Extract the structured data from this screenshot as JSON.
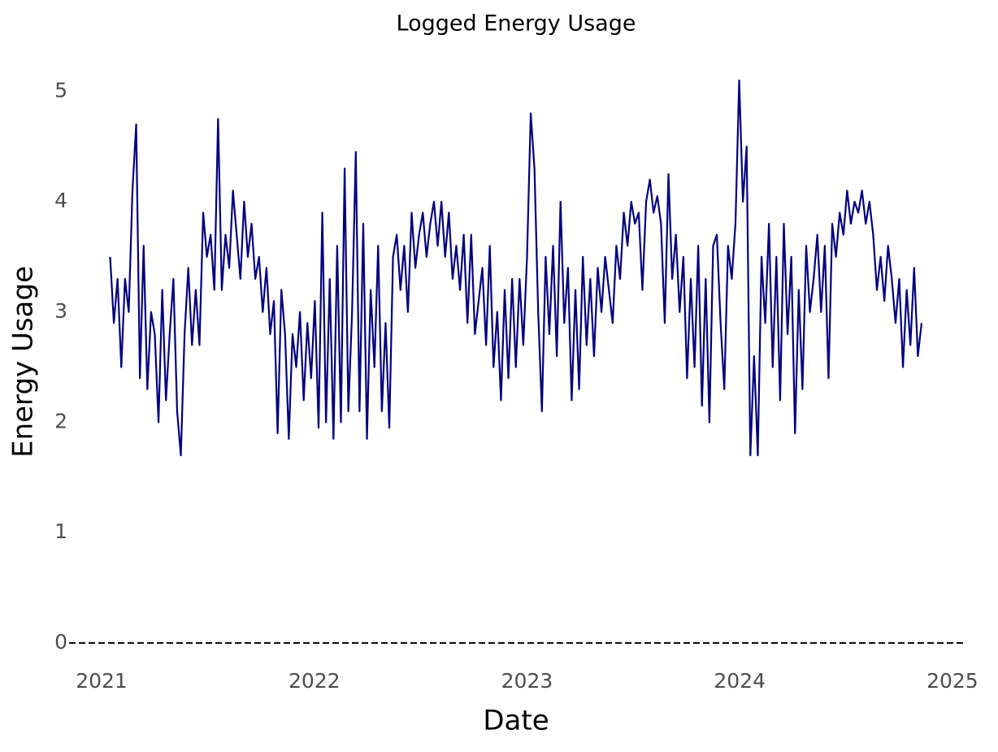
{
  "chart_data": {
    "type": "line",
    "title": "Logged Energy Usage",
    "x_label": "Date",
    "y_label": "Energy Usage",
    "xlim": [
      2020.847,
      2025.05
    ],
    "xticks": [
      2021,
      2022,
      2023,
      2024,
      2025
    ],
    "ylim": [
      -0.06,
      5.15
    ],
    "yticks": [
      0,
      1,
      2,
      3,
      4,
      5
    ],
    "grid": false,
    "hline": 0,
    "series": [
      {
        "name": "Energy Usage",
        "color": "#00007f",
        "x": [
          2021.04,
          2021.0575,
          2021.075,
          2021.0925,
          2021.11,
          2021.1275,
          2021.145,
          2021.1625,
          2021.18,
          2021.1975,
          2021.215,
          2021.2325,
          2021.25,
          2021.2675,
          2021.285,
          2021.3025,
          2021.32,
          2021.3375,
          2021.355,
          2021.3725,
          2021.39,
          2021.4075,
          2021.425,
          2021.4425,
          2021.46,
          2021.4775,
          2021.495,
          2021.5125,
          2021.53,
          2021.5475,
          2021.565,
          2021.5825,
          2021.6,
          2021.6175,
          2021.635,
          2021.6525,
          2021.67,
          2021.6875,
          2021.705,
          2021.7225,
          2021.74,
          2021.7575,
          2021.775,
          2021.7925,
          2021.81,
          2021.8275,
          2021.845,
          2021.8625,
          2021.88,
          2021.8975,
          2021.915,
          2021.9325,
          2021.95,
          2021.9675,
          2021.985,
          2022.0025,
          2022.02,
          2022.0375,
          2022.055,
          2022.0725,
          2022.09,
          2022.1075,
          2022.125,
          2022.1425,
          2022.16,
          2022.1775,
          2022.195,
          2022.2125,
          2022.23,
          2022.2475,
          2022.265,
          2022.2825,
          2022.3,
          2022.3175,
          2022.335,
          2022.3525,
          2022.37,
          2022.3875,
          2022.405,
          2022.4225,
          2022.44,
          2022.4575,
          2022.475,
          2022.4925,
          2022.51,
          2022.5275,
          2022.545,
          2022.5625,
          2022.58,
          2022.5975,
          2022.615,
          2022.6325,
          2022.65,
          2022.6675,
          2022.685,
          2022.7025,
          2022.72,
          2022.7375,
          2022.755,
          2022.7725,
          2022.79,
          2022.8075,
          2022.825,
          2022.8425,
          2022.86,
          2022.8775,
          2022.895,
          2022.9125,
          2022.93,
          2022.9475,
          2022.965,
          2022.9825,
          2023.0,
          2023.0175,
          2023.035,
          2023.0525,
          2023.07,
          2023.0875,
          2023.105,
          2023.1225,
          2023.14,
          2023.1575,
          2023.175,
          2023.1925,
          2023.21,
          2023.2275,
          2023.245,
          2023.2625,
          2023.28,
          2023.2975,
          2023.315,
          2023.3325,
          2023.35,
          2023.3675,
          2023.385,
          2023.4025,
          2023.42,
          2023.4375,
          2023.455,
          2023.4725,
          2023.49,
          2023.5075,
          2023.525,
          2023.5425,
          2023.56,
          2023.5775,
          2023.595,
          2023.6125,
          2023.63,
          2023.6475,
          2023.665,
          2023.6825,
          2023.7,
          2023.7175,
          2023.735,
          2023.7525,
          2023.77,
          2023.7875,
          2023.805,
          2023.8225,
          2023.84,
          2023.8575,
          2023.875,
          2023.8925,
          2023.91,
          2023.9275,
          2023.945,
          2023.9625,
          2023.98,
          2023.9975,
          2024.015,
          2024.0325,
          2024.05,
          2024.0675,
          2024.085,
          2024.1025,
          2024.12,
          2024.1375,
          2024.155,
          2024.1725,
          2024.19,
          2024.2075,
          2024.225,
          2024.2425,
          2024.26,
          2024.2775,
          2024.295,
          2024.3125,
          2024.33,
          2024.3475,
          2024.365,
          2024.3825,
          2024.4,
          2024.4175,
          2024.435,
          2024.4525,
          2024.47,
          2024.4875,
          2024.505,
          2024.5225,
          2024.54,
          2024.5575,
          2024.575,
          2024.5925,
          2024.61,
          2024.6275,
          2024.645,
          2024.6625,
          2024.68,
          2024.6975,
          2024.715,
          2024.7325,
          2024.75,
          2024.7675,
          2024.785,
          2024.8025,
          2024.82,
          2024.8375,
          2024.855
        ],
        "values": [
          3.5,
          2.9,
          3.3,
          2.5,
          3.3,
          3.0,
          4.1,
          4.7,
          2.4,
          3.6,
          2.3,
          3.0,
          2.8,
          2.0,
          3.2,
          2.2,
          2.8,
          3.3,
          2.1,
          1.7,
          2.8,
          3.4,
          2.7,
          3.2,
          2.7,
          3.9,
          3.5,
          3.7,
          3.2,
          4.75,
          3.2,
          3.7,
          3.4,
          4.1,
          3.7,
          3.3,
          4.0,
          3.5,
          3.8,
          3.3,
          3.5,
          3.0,
          3.4,
          2.8,
          3.1,
          1.9,
          3.2,
          2.8,
          1.85,
          2.8,
          2.5,
          3.0,
          2.2,
          2.9,
          2.4,
          3.1,
          1.95,
          3.9,
          2.0,
          3.3,
          1.85,
          3.6,
          2.0,
          4.3,
          2.1,
          3.0,
          4.45,
          2.1,
          3.8,
          1.85,
          3.2,
          2.5,
          3.6,
          2.1,
          2.9,
          1.95,
          3.5,
          3.7,
          3.2,
          3.6,
          3.0,
          3.9,
          3.4,
          3.7,
          3.9,
          3.5,
          3.8,
          4.0,
          3.6,
          4.0,
          3.5,
          3.9,
          3.3,
          3.6,
          3.2,
          3.7,
          2.9,
          3.7,
          2.8,
          3.1,
          3.4,
          2.7,
          3.6,
          2.5,
          3.0,
          2.2,
          3.2,
          2.4,
          3.3,
          2.5,
          3.3,
          2.7,
          3.5,
          4.8,
          4.3,
          3.0,
          2.1,
          3.5,
          2.8,
          3.6,
          2.6,
          4.0,
          2.9,
          3.4,
          2.2,
          3.2,
          2.3,
          3.5,
          2.7,
          3.3,
          2.6,
          3.4,
          3.0,
          3.5,
          3.2,
          2.9,
          3.6,
          3.3,
          3.9,
          3.6,
          4.0,
          3.8,
          3.9,
          3.2,
          4.0,
          4.2,
          3.9,
          4.05,
          3.8,
          2.9,
          4.25,
          3.3,
          3.7,
          3.0,
          3.5,
          2.4,
          3.3,
          2.5,
          3.6,
          2.15,
          3.3,
          2.0,
          3.6,
          3.7,
          2.9,
          2.3,
          3.6,
          3.3,
          3.8,
          5.1,
          4.0,
          4.5,
          1.7,
          2.6,
          1.7,
          3.5,
          2.9,
          3.8,
          2.5,
          3.5,
          2.2,
          3.8,
          2.8,
          3.5,
          1.9,
          3.2,
          2.3,
          3.6,
          3.0,
          3.3,
          3.7,
          3.0,
          3.6,
          2.4,
          3.8,
          3.5,
          3.9,
          3.7,
          4.1,
          3.8,
          4.0,
          3.9,
          4.1,
          3.8,
          4.0,
          3.7,
          3.2,
          3.5,
          3.1,
          3.6,
          3.3,
          2.9,
          3.3,
          2.5,
          3.2,
          2.7,
          3.4,
          2.6,
          2.9
        ]
      }
    ]
  }
}
